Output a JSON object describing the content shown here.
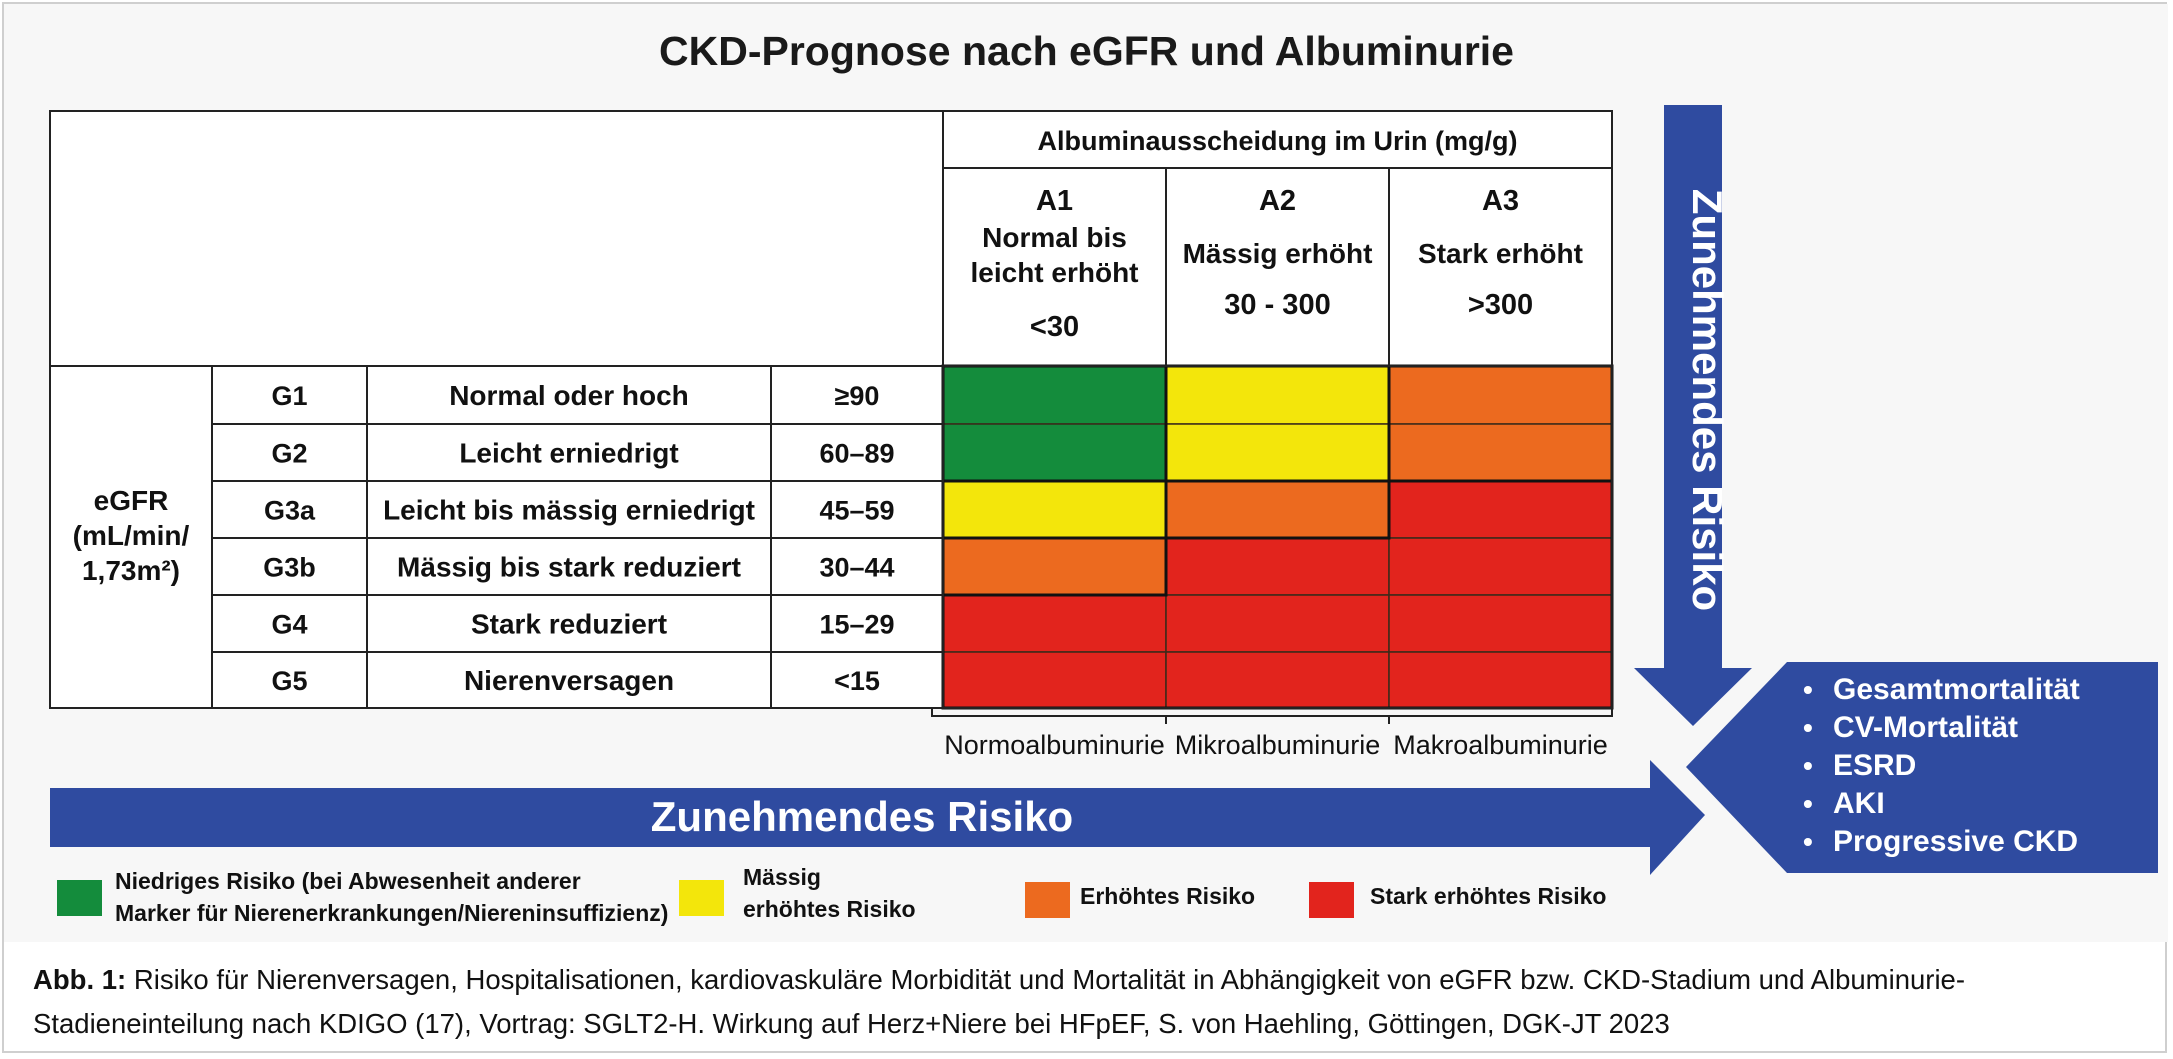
{
  "title": "CKD-Prognose nach eGFR und Albuminurie",
  "albumin_header": "Albuminausscheidung im Urin (mg/g)",
  "albumin_columns": [
    {
      "code": "A1",
      "label_lines": [
        "Normal bis",
        "leicht erhöht"
      ],
      "range": "<30",
      "class": "Normoalbuminurie"
    },
    {
      "code": "A2",
      "label_lines": [
        "Mässig erhöht"
      ],
      "range": "30 - 300",
      "class": "Mikroalbuminurie"
    },
    {
      "code": "A3",
      "label_lines": [
        "Stark erhöht"
      ],
      "range": ">300",
      "class": "Makroalbuminurie"
    }
  ],
  "egfr_label_lines": [
    "eGFR",
    "(mL/min/",
    "1,73m²)"
  ],
  "egfr_rows": [
    {
      "stage": "G1",
      "description": "Normal oder hoch",
      "range": "≥90",
      "risk": [
        "low",
        "moderate",
        "high"
      ]
    },
    {
      "stage": "G2",
      "description": "Leicht erniedrigt",
      "range": "60–89",
      "risk": [
        "low",
        "moderate",
        "high"
      ]
    },
    {
      "stage": "G3a",
      "description": "Leicht bis mässig erniedrigt",
      "range": "45–59",
      "risk": [
        "moderate",
        "high",
        "very_high"
      ]
    },
    {
      "stage": "G3b",
      "description": "Mässig bis stark reduziert",
      "range": "30–44",
      "risk": [
        "high",
        "very_high",
        "very_high"
      ]
    },
    {
      "stage": "G4",
      "description": "Stark reduziert",
      "range": "15–29",
      "risk": [
        "very_high",
        "very_high",
        "very_high"
      ]
    },
    {
      "stage": "G5",
      "description": "Nierenversagen",
      "range": "<15",
      "risk": [
        "very_high",
        "very_high",
        "very_high"
      ]
    }
  ],
  "risk_colors": {
    "low": "#148c3c",
    "moderate": "#f3e60b",
    "high": "#ec6a1f",
    "very_high": "#e2241d"
  },
  "arrow_color": "#2f4ba0",
  "horizontal_arrow_label": "Zunehmendes Risiko",
  "vertical_arrow_label": "Zunehmendes Risiko",
  "outcomes": [
    "Gesamtmortalität",
    "CV-Mortalität",
    "ESRD",
    "AKI",
    "Progressive CKD"
  ],
  "legend": [
    {
      "risk": "low",
      "lines": [
        "Niedriges Risiko (bei Abwesenheit anderer",
        "Marker für Nierenerkrankungen/Niereninsuffizienz)"
      ]
    },
    {
      "risk": "moderate",
      "lines": [
        "Mässig",
        "erhöhtes Risiko"
      ]
    },
    {
      "risk": "high",
      "lines": [
        "Erhöhtes Risiko"
      ]
    },
    {
      "risk": "very_high",
      "lines": [
        "Stark erhöhtes Risiko"
      ]
    }
  ],
  "caption": {
    "label": "Abb. 1:",
    "text": " Risiko für Nierenversagen, Hospitalisationen, kardiovaskuläre Morbidität und Mortalität in Abhängigkeit von eGFR bzw. CKD-Stadium und Albuminurie-Stadieneinteilung nach KDIGO (17), Vortrag: SGLT2-H. Wirkung auf Herz+Niere bei HFpEF, S. von Haehling, Göttingen, DGK-JT 2023"
  }
}
